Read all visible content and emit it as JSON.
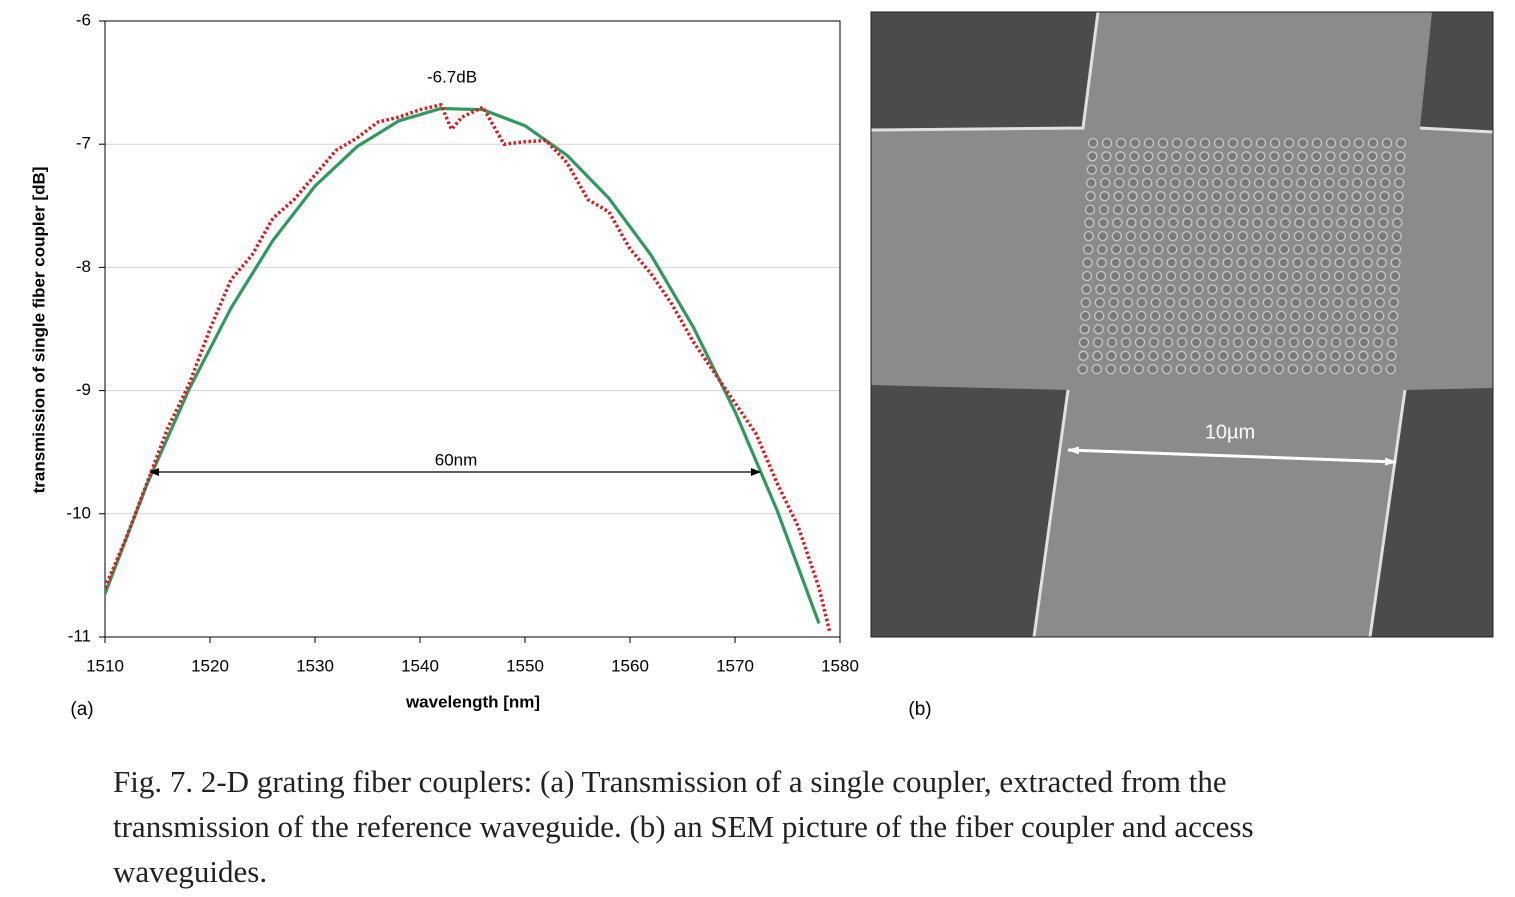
{
  "chart_data": {
    "type": "line",
    "xlabel": "wavelength [nm]",
    "ylabel": "transmission of single fiber coupler [dB]",
    "xlim": [
      1510,
      1580
    ],
    "xticks": [
      1510,
      1520,
      1530,
      1540,
      1550,
      1560,
      1570,
      1580
    ],
    "ylim": [
      -11,
      -6
    ],
    "yticks": [
      -11,
      -10,
      -9,
      -8,
      -7,
      -6
    ],
    "grid": true,
    "annotations": [
      "-6.7dB",
      "60nm"
    ],
    "series": [
      {
        "color": "#e8141b",
        "style": "dotted",
        "x": [
          1510,
          1512,
          1514,
          1516,
          1518,
          1520,
          1522,
          1524,
          1526,
          1528,
          1530,
          1532,
          1534,
          1536,
          1538,
          1540,
          1542,
          1543,
          1544,
          1546,
          1548,
          1550,
          1552,
          1554,
          1556,
          1558,
          1560,
          1562,
          1564,
          1566,
          1568,
          1570,
          1572,
          1574,
          1576,
          1578,
          1579
        ],
        "values": [
          -10.6,
          -10.2,
          -9.75,
          -9.3,
          -8.95,
          -8.5,
          -8.1,
          -7.9,
          -7.6,
          -7.45,
          -7.25,
          -7.05,
          -6.95,
          -6.82,
          -6.78,
          -6.72,
          -6.68,
          -6.88,
          -6.78,
          -6.7,
          -7.0,
          -6.98,
          -6.97,
          -7.15,
          -7.45,
          -7.55,
          -7.85,
          -8.05,
          -8.3,
          -8.6,
          -8.85,
          -9.1,
          -9.35,
          -9.75,
          -10.1,
          -10.6,
          -10.95
        ]
      },
      {
        "color": "#2e9a5e",
        "style": "solid",
        "x": [
          1510,
          1514,
          1518,
          1522,
          1526,
          1530,
          1534,
          1538,
          1542,
          1546,
          1550,
          1554,
          1558,
          1562,
          1566,
          1570,
          1574,
          1578
        ],
        "values": [
          -10.65,
          -9.76,
          -8.99,
          -8.33,
          -7.78,
          -7.34,
          -7.02,
          -6.81,
          -6.71,
          -6.72,
          -6.85,
          -7.09,
          -7.44,
          -7.9,
          -8.48,
          -9.17,
          -9.97,
          -10.89
        ]
      }
    ]
  },
  "panel_labels": [
    "(a)",
    "(b)"
  ],
  "image": {
    "scale_label": "10µm"
  },
  "caption_lines": [
    "Fig. 7. 2-D grating fiber couplers: (a) Transmission of a single coupler, extracted from the",
    "transmission of the reference waveguide. (b) an SEM picture of the fiber coupler and access",
    "waveguides."
  ]
}
